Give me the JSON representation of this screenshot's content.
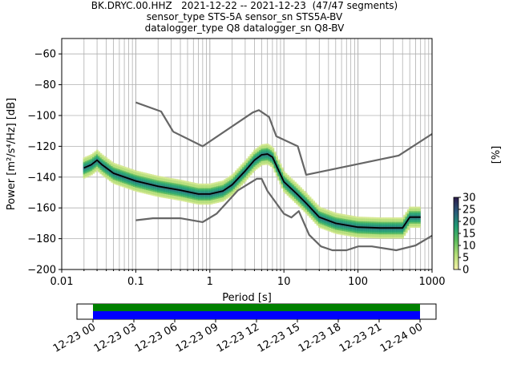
{
  "header": {
    "line1": "BK.DRYC.00.HHZ   2021-12-22 -- 2021-12-23  (47/47 segments)",
    "line2": "sensor_type STS-5A sensor_sn STS5A-BV",
    "line3": "datalogger_type Q8 datalogger_sn Q8-BV"
  },
  "chart_data": [
    {
      "type": "heatmap",
      "title": "",
      "xlabel": "Period [s]",
      "ylabel": "Power [m²/s⁴/Hz] [dB]",
      "x_scale": "log",
      "xlim": [
        0.01,
        1000
      ],
      "ylim": [
        -200,
        -50
      ],
      "x_ticks": [
        "0.01",
        "0.1",
        "1",
        "10",
        "100",
        "1000"
      ],
      "x_tick_values": [
        0.01,
        0.1,
        1,
        10,
        100,
        1000
      ],
      "y_ticks": [
        "−200",
        "−180",
        "−160",
        "−140",
        "−120",
        "−100",
        "−80",
        "−60"
      ],
      "y_tick_values": [
        -200,
        -180,
        -160,
        -140,
        -120,
        -100,
        -80,
        -60
      ],
      "grid": true,
      "colorbar": {
        "label": "[%]",
        "range": [
          0,
          30
        ],
        "ticks": [
          "0",
          "5",
          "10",
          "15",
          "20",
          "25",
          "30"
        ],
        "tick_values": [
          0,
          5,
          10,
          15,
          20,
          25,
          30
        ]
      },
      "noise_models": {
        "nhnm": [
          [
            0.1,
            -91.5
          ],
          [
            0.22,
            -97.4
          ],
          [
            0.32,
            -110.5
          ],
          [
            0.8,
            -120
          ],
          [
            3.8,
            -98
          ],
          [
            4.6,
            -96.5
          ],
          [
            6.3,
            -101
          ],
          [
            7.9,
            -113.5
          ],
          [
            15.4,
            -120
          ],
          [
            20,
            -138.5
          ],
          [
            354.8,
            -126
          ],
          [
            1000,
            -112
          ]
        ],
        "nlnm": [
          [
            0.1,
            -168
          ],
          [
            0.17,
            -166.7
          ],
          [
            0.4,
            -166.7
          ],
          [
            0.8,
            -169.2
          ],
          [
            1.24,
            -163.7
          ],
          [
            2.4,
            -148.6
          ],
          [
            4.3,
            -141.1
          ],
          [
            5.0,
            -141.1
          ],
          [
            6.0,
            -149
          ],
          [
            10.0,
            -163.8
          ],
          [
            12.6,
            -166.2
          ],
          [
            15.9,
            -162.1
          ],
          [
            21.9,
            -177.5
          ],
          [
            31.6,
            -185
          ],
          [
            45,
            -187.5
          ],
          [
            70,
            -187.5
          ],
          [
            101,
            -185
          ],
          [
            154,
            -185
          ],
          [
            328,
            -187.5
          ],
          [
            600,
            -184.4
          ],
          [
            1000,
            -178
          ]
        ]
      },
      "median": [
        [
          0.02,
          -134
        ],
        [
          0.025,
          -132
        ],
        [
          0.03,
          -129
        ],
        [
          0.035,
          -132
        ],
        [
          0.05,
          -137.5
        ],
        [
          0.1,
          -142.5
        ],
        [
          0.2,
          -146
        ],
        [
          0.4,
          -148.5
        ],
        [
          0.7,
          -151
        ],
        [
          1.0,
          -151
        ],
        [
          1.5,
          -149
        ],
        [
          2.0,
          -145
        ],
        [
          3.0,
          -136
        ],
        [
          4.0,
          -129
        ],
        [
          5.0,
          -125.5
        ],
        [
          6.0,
          -125
        ],
        [
          7.0,
          -127
        ],
        [
          8.0,
          -133
        ],
        [
          10.0,
          -143
        ],
        [
          15.0,
          -151
        ],
        [
          20.0,
          -157
        ],
        [
          30.0,
          -166
        ],
        [
          50.0,
          -170
        ],
        [
          100.0,
          -172.5
        ],
        [
          200.0,
          -173
        ],
        [
          400.0,
          -173
        ],
        [
          500.0,
          -166
        ],
        [
          700.0,
          -166
        ]
      ],
      "density_color_range": [
        "#f5f0a8",
        "#2b1a4a"
      ]
    },
    {
      "type": "timeline",
      "x_ticks": [
        "12-23 00",
        "12-23 03",
        "12-23 06",
        "12-23 09",
        "12-23 12",
        "12-23 15",
        "12-23 18",
        "12-23 21",
        "12-24 00"
      ],
      "data_coverage_color": "#008000",
      "gap_free_color": "#0000ff",
      "coverage_hours": [
        0,
        24
      ]
    }
  ]
}
